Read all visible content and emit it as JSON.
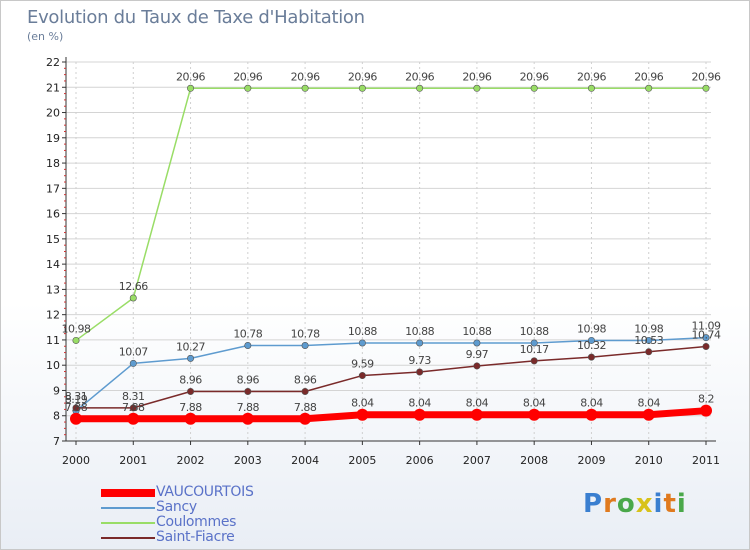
{
  "title": "Evolution du Taux de Taxe d'Habitation",
  "subtitle": "(en %)",
  "logo": {
    "letters": [
      "P",
      "r",
      "o",
      "x",
      "i",
      "t",
      "i"
    ],
    "colors": [
      "#3a7fd0",
      "#e07a1e",
      "#4aa84a",
      "#d8c21a",
      "#3a7fd0",
      "#e07a1e",
      "#4aa84a"
    ]
  },
  "chart_data": {
    "type": "line",
    "x": [
      "2000",
      "2001",
      "2002",
      "2003",
      "2004",
      "2005",
      "2006",
      "2007",
      "2008",
      "2009",
      "2010",
      "2011"
    ],
    "ylim": [
      7,
      22
    ],
    "yticks": [
      "7",
      "8",
      "9",
      "10",
      "11",
      "12",
      "13",
      "14",
      "15",
      "16",
      "17",
      "18",
      "19",
      "20",
      "21",
      "22"
    ],
    "legend_position": "bottom-left",
    "series": [
      {
        "name": "VAUCOURTOIS",
        "color": "#ff0000",
        "width": 7,
        "values": [
          7.88,
          7.88,
          7.88,
          7.88,
          7.88,
          8.04,
          8.04,
          8.04,
          8.04,
          8.04,
          8.04,
          8.2
        ],
        "labels": [
          "7.88",
          "7.88",
          "7.88",
          "7.88",
          "7.88",
          "8.04",
          "8.04",
          "8.04",
          "8.04",
          "8.04",
          "8.04",
          "8.2"
        ]
      },
      {
        "name": "Sancy",
        "color": "#5e9bcf",
        "width": 1.5,
        "values": [
          8.19,
          10.07,
          10.27,
          10.78,
          10.78,
          10.88,
          10.88,
          10.88,
          10.88,
          10.98,
          10.98,
          11.09
        ],
        "labels": [
          "8.19",
          "10.07",
          "10.27",
          "10.78",
          "10.78",
          "10.88",
          "10.88",
          "10.88",
          "10.88",
          "10.98",
          "10.98",
          "11.09"
        ]
      },
      {
        "name": "Coulommes",
        "color": "#99dd66",
        "width": 1.5,
        "values": [
          10.98,
          12.66,
          20.96,
          20.96,
          20.96,
          20.96,
          20.96,
          20.96,
          20.96,
          20.96,
          20.96,
          20.96
        ],
        "labels": [
          "10.98",
          "12.66",
          "20.96",
          "20.96",
          "20.96",
          "20.96",
          "20.96",
          "20.96",
          "20.96",
          "20.96",
          "20.96",
          "20.96"
        ]
      },
      {
        "name": "Saint-Fiacre",
        "color": "#7a2a2a",
        "width": 1.5,
        "values": [
          8.31,
          8.31,
          8.96,
          8.96,
          8.96,
          9.59,
          9.73,
          9.97,
          10.17,
          10.32,
          10.53,
          10.74
        ],
        "labels": [
          "8.31",
          "8.31",
          "8.96",
          "8.96",
          "8.96",
          "9.59",
          "9.73",
          "9.97",
          "10.17",
          "10.32",
          "10.53",
          "10.74"
        ]
      }
    ]
  }
}
